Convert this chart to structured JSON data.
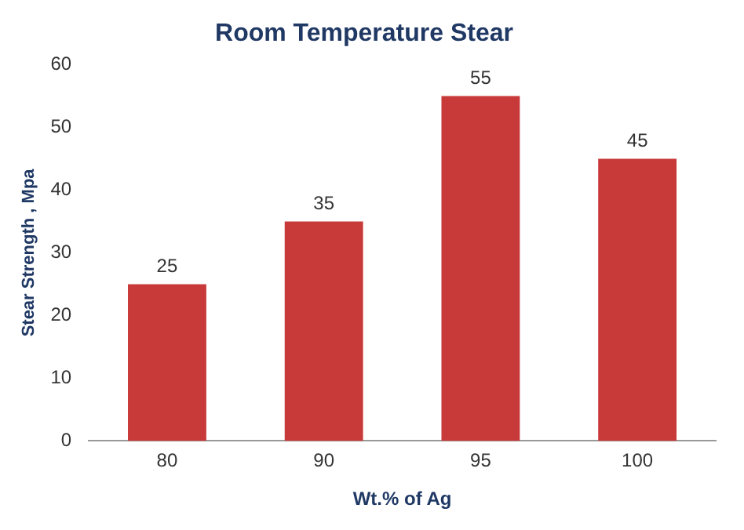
{
  "chart_data": {
    "type": "bar",
    "title": "Room Temperature Stear",
    "xlabel": "Wt.% of Ag",
    "ylabel": "Stear Strength , Mpa",
    "categories": [
      "80",
      "90",
      "95",
      "100"
    ],
    "values": [
      25,
      35,
      55,
      45
    ],
    "color": "#c83a3a",
    "ylim": [
      0,
      60
    ],
    "yticks": [
      0,
      10,
      20,
      30,
      40,
      50,
      60
    ],
    "grid": false,
    "legend": false,
    "data_labels": true
  }
}
